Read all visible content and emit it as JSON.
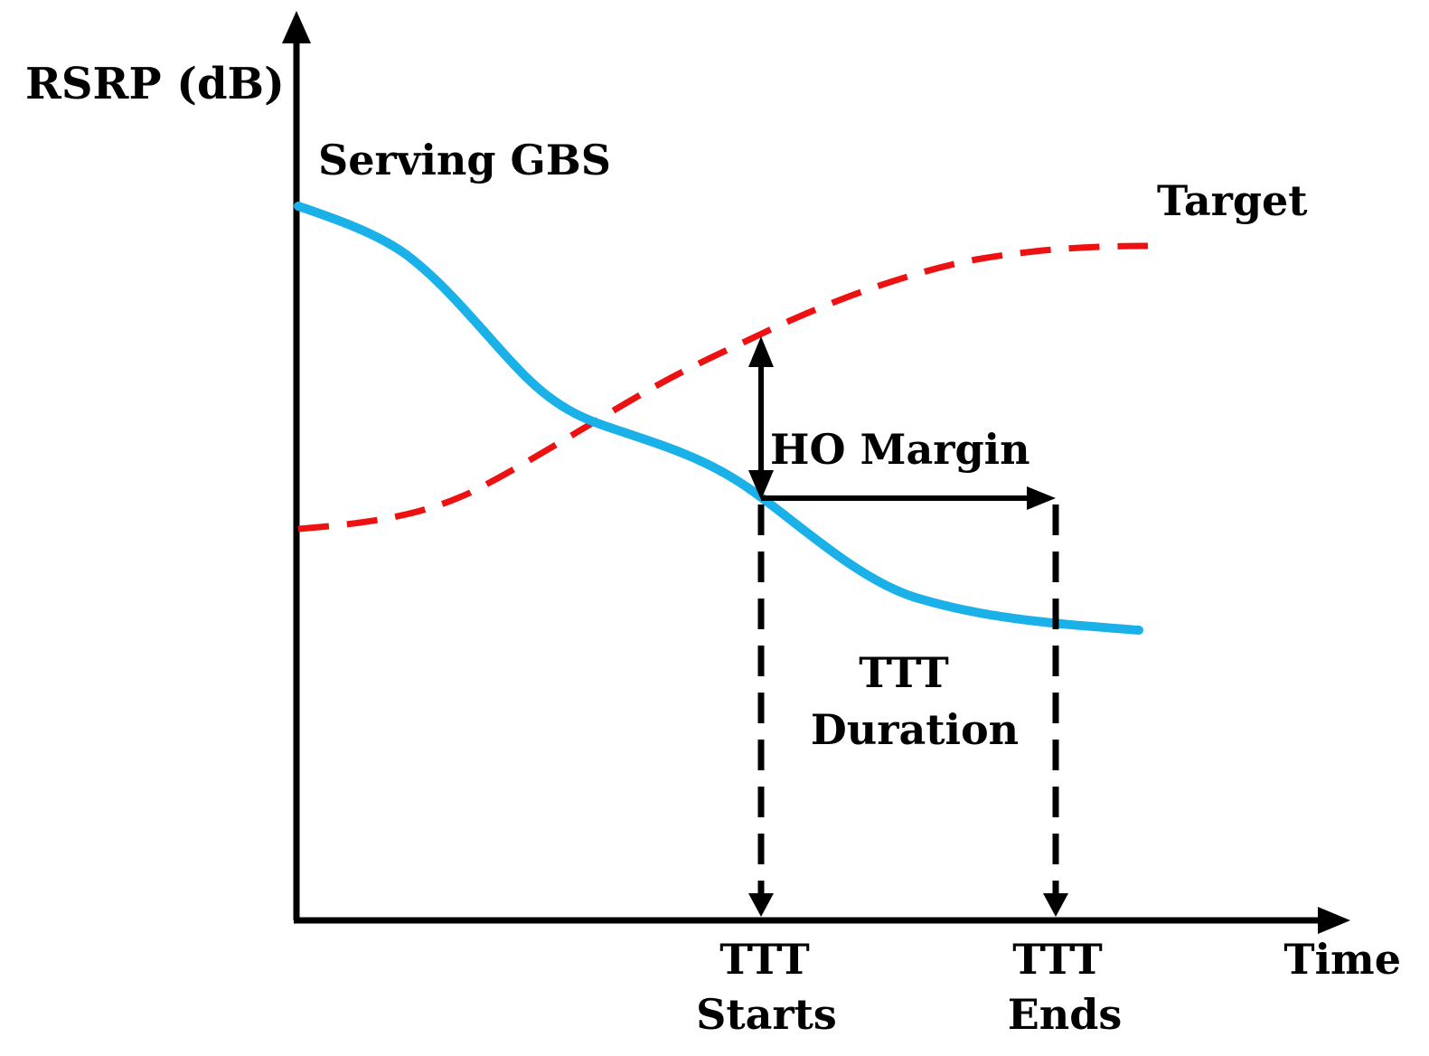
{
  "axes": {
    "y_label": "RSRP (dB)",
    "x_label": "Time"
  },
  "curves": {
    "serving": {
      "label": "Serving GBS",
      "color": "#1ab0e8",
      "style": "solid"
    },
    "target": {
      "label": "Target",
      "color": "#ee1111",
      "style": "dashed"
    }
  },
  "annotations": {
    "ho_margin": "HO Margin",
    "ttt_duration": {
      "line1": "TTT",
      "line2": "Duration"
    },
    "ttt_starts": {
      "line1": "TTT",
      "line2": "Starts"
    },
    "ttt_ends": {
      "line1": "TTT",
      "line2": "Ends"
    }
  },
  "colors": {
    "axes": "#000000"
  }
}
